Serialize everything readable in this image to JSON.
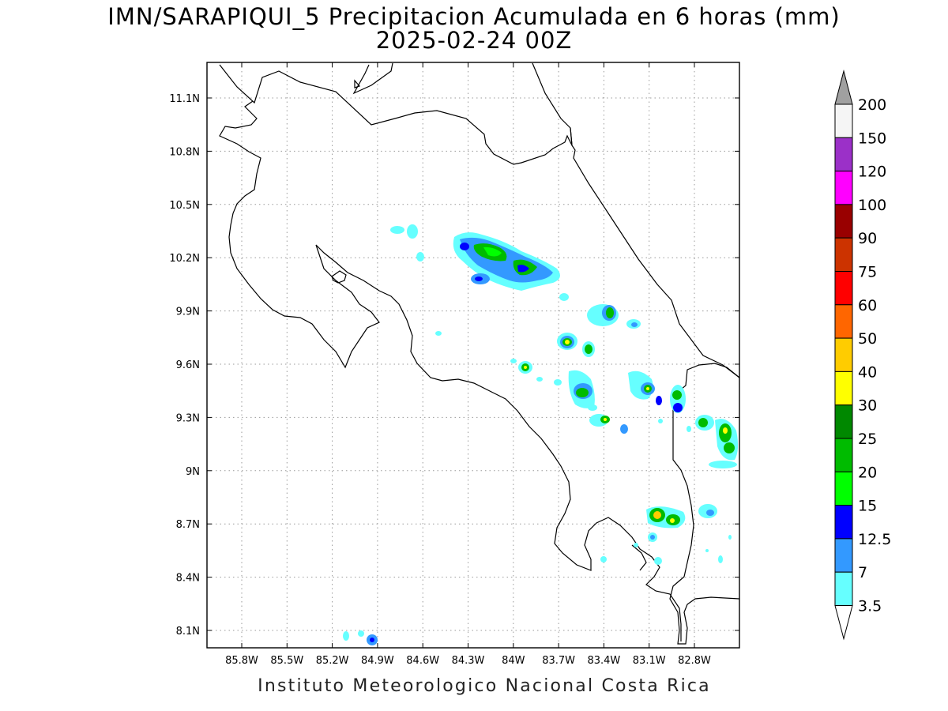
{
  "title": {
    "line1": "IMN/SARAPIQUI_5 Precipitacion Acumulada en 6 horas (mm)",
    "line2": "2025-02-24 00Z"
  },
  "footer": "Instituto Meteorologico Nacional Costa Rica",
  "axes": {
    "lon_ticks": [
      "85.8W",
      "85.5W",
      "85.2W",
      "84.9W",
      "84.6W",
      "84.3W",
      "84W",
      "83.7W",
      "83.4W",
      "83.1W",
      "82.8W"
    ],
    "lat_ticks": [
      "11.1N",
      "10.8N",
      "10.5N",
      "10.2N",
      "9.9N",
      "9.6N",
      "9.3N",
      "9N",
      "8.7N",
      "8.4N",
      "8.1N"
    ],
    "grid": true
  },
  "colorbar": {
    "levels": [
      "200",
      "150",
      "120",
      "100",
      "90",
      "75",
      "60",
      "50",
      "40",
      "30",
      "25",
      "20",
      "15",
      "12.5",
      "7",
      "3.5"
    ],
    "colors": [
      "#f5f5f5",
      "#9b30c8",
      "#ff00ff",
      "#990000",
      "#cc3300",
      "#ff0000",
      "#ff6600",
      "#ffcc00",
      "#ffff00",
      "#008800",
      "#00bb00",
      "#00ff00",
      "#0000ff",
      "#3399ff",
      "#66ffff"
    ],
    "over_color": "#a0a0a0",
    "under_color": "#ffffff"
  }
}
